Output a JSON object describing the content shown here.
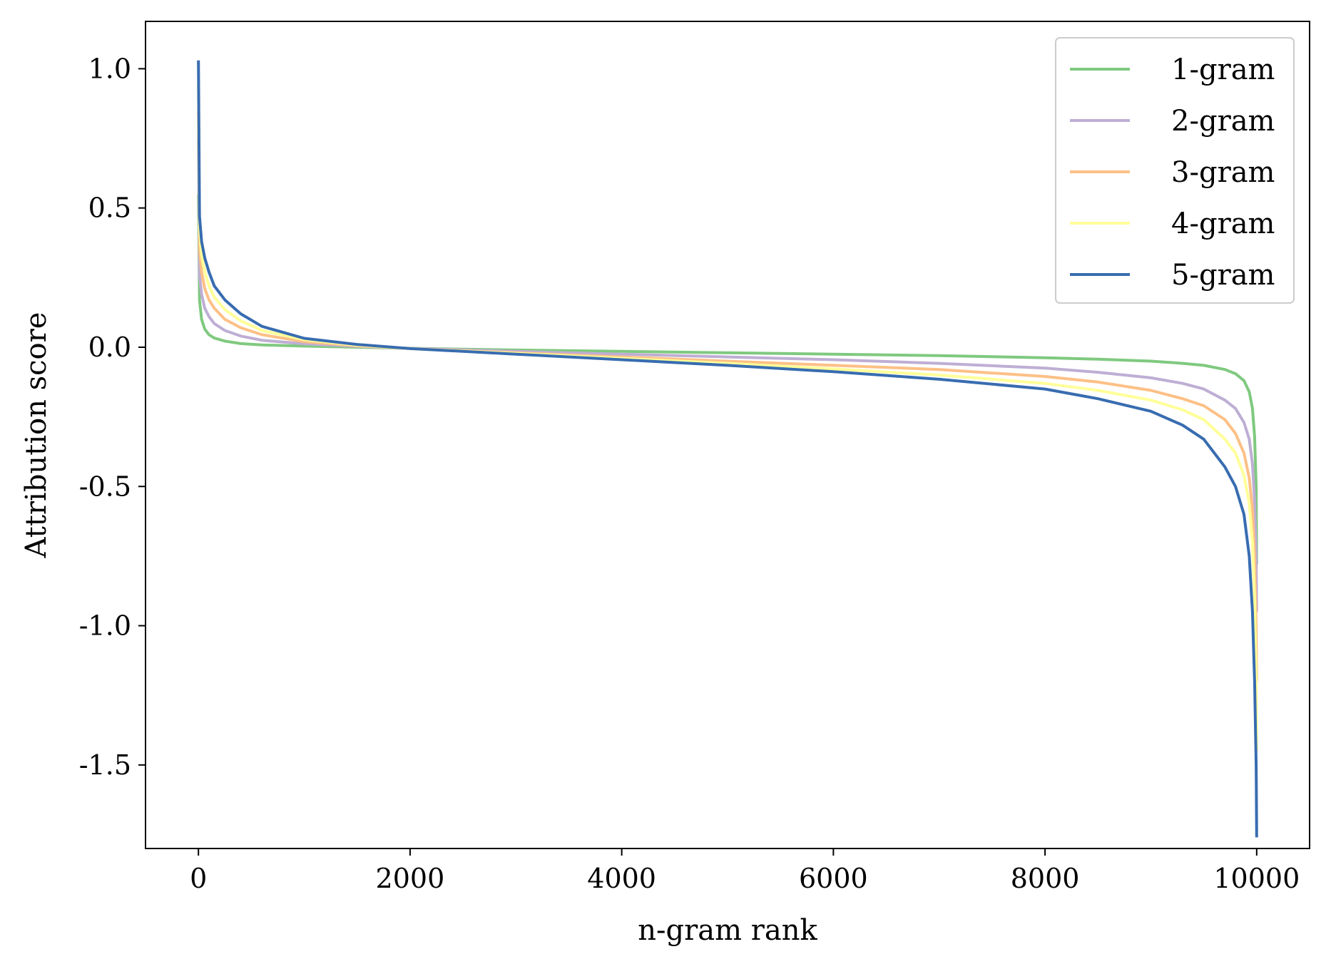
{
  "chart_data": {
    "type": "line",
    "title": "",
    "xlabel": "n-gram rank",
    "ylabel": "Attribution score",
    "xlim": [
      -500,
      10500
    ],
    "ylim": [
      -1.8,
      1.17
    ],
    "xticks": [
      0,
      2000,
      4000,
      6000,
      8000,
      10000
    ],
    "xtick_labels": [
      "0",
      "2000",
      "4000",
      "6000",
      "8000",
      "10000"
    ],
    "yticks": [
      1.0,
      0.5,
      0.0,
      -0.5,
      -1.0,
      -1.5
    ],
    "ytick_labels": [
      "1.0",
      "0.5",
      "0.0",
      "-0.5",
      "-1.0",
      "-1.5"
    ],
    "grid": false,
    "legend": "top-right",
    "series": [
      {
        "name": "1-gram",
        "color": "#7fc97f",
        "x": [
          0,
          10,
          30,
          60,
          100,
          150,
          250,
          400,
          600,
          1000,
          1500,
          2000,
          3000,
          4000,
          5000,
          6000,
          7000,
          8000,
          8500,
          9000,
          9300,
          9500,
          9700,
          9800,
          9880,
          9930,
          9960,
          9980,
          9995,
          10000
        ],
        "y": [
          0.55,
          0.17,
          0.1,
          0.065,
          0.045,
          0.033,
          0.022,
          0.013,
          0.008,
          0.004,
          0.0,
          -0.004,
          -0.01,
          -0.015,
          -0.02,
          -0.025,
          -0.03,
          -0.038,
          -0.043,
          -0.05,
          -0.058,
          -0.065,
          -0.08,
          -0.095,
          -0.12,
          -0.16,
          -0.22,
          -0.32,
          -0.5,
          -0.78
        ]
      },
      {
        "name": "2-gram",
        "color": "#beaed4",
        "x": [
          0,
          10,
          30,
          60,
          100,
          150,
          250,
          400,
          600,
          1000,
          1500,
          2000,
          3000,
          4000,
          5000,
          6000,
          7000,
          8000,
          8500,
          9000,
          9300,
          9500,
          9700,
          9800,
          9880,
          9930,
          9960,
          9980,
          9995,
          10000
        ],
        "y": [
          0.75,
          0.26,
          0.19,
          0.14,
          0.11,
          0.085,
          0.06,
          0.04,
          0.025,
          0.012,
          0.003,
          -0.004,
          -0.015,
          -0.025,
          -0.035,
          -0.045,
          -0.058,
          -0.075,
          -0.09,
          -0.11,
          -0.13,
          -0.15,
          -0.19,
          -0.22,
          -0.27,
          -0.33,
          -0.42,
          -0.55,
          -0.75,
          -0.95
        ]
      },
      {
        "name": "3-gram",
        "color": "#fdc086",
        "x": [
          0,
          10,
          30,
          60,
          100,
          150,
          250,
          400,
          600,
          1000,
          1500,
          2000,
          3000,
          4000,
          5000,
          6000,
          7000,
          8000,
          8500,
          9000,
          9300,
          9500,
          9700,
          9800,
          9880,
          9930,
          9960,
          9980,
          9995,
          10000
        ],
        "y": [
          0.85,
          0.35,
          0.27,
          0.21,
          0.17,
          0.14,
          0.1,
          0.07,
          0.045,
          0.02,
          0.005,
          -0.005,
          -0.02,
          -0.035,
          -0.05,
          -0.065,
          -0.08,
          -0.105,
          -0.125,
          -0.155,
          -0.185,
          -0.21,
          -0.26,
          -0.31,
          -0.38,
          -0.47,
          -0.58,
          -0.75,
          -1.0,
          -1.2
        ]
      },
      {
        "name": "4-gram",
        "color": "#ffff99",
        "x": [
          0,
          10,
          30,
          60,
          100,
          150,
          250,
          400,
          600,
          1000,
          1500,
          2000,
          3000,
          4000,
          5000,
          6000,
          7000,
          8000,
          8500,
          9000,
          9300,
          9500,
          9700,
          9800,
          9880,
          9930,
          9960,
          9980,
          9995,
          10000
        ],
        "y": [
          0.95,
          0.42,
          0.33,
          0.27,
          0.22,
          0.18,
          0.135,
          0.095,
          0.06,
          0.027,
          0.007,
          -0.005,
          -0.022,
          -0.04,
          -0.058,
          -0.078,
          -0.1,
          -0.13,
          -0.155,
          -0.19,
          -0.225,
          -0.26,
          -0.33,
          -0.38,
          -0.46,
          -0.56,
          -0.7,
          -0.9,
          -1.2,
          -1.45
        ]
      },
      {
        "name": "5-gram",
        "color": "#386cb0",
        "x": [
          0,
          10,
          30,
          60,
          100,
          150,
          250,
          400,
          600,
          1000,
          1500,
          2000,
          3000,
          4000,
          5000,
          6000,
          7000,
          8000,
          8500,
          9000,
          9300,
          9500,
          9700,
          9800,
          9880,
          9930,
          9960,
          9980,
          9995,
          10000
        ],
        "y": [
          1.03,
          0.47,
          0.38,
          0.32,
          0.27,
          0.22,
          0.17,
          0.12,
          0.075,
          0.032,
          0.01,
          -0.005,
          -0.025,
          -0.045,
          -0.065,
          -0.088,
          -0.115,
          -0.15,
          -0.185,
          -0.23,
          -0.28,
          -0.33,
          -0.43,
          -0.5,
          -0.6,
          -0.75,
          -0.95,
          -1.2,
          -1.5,
          -1.76
        ]
      }
    ]
  }
}
